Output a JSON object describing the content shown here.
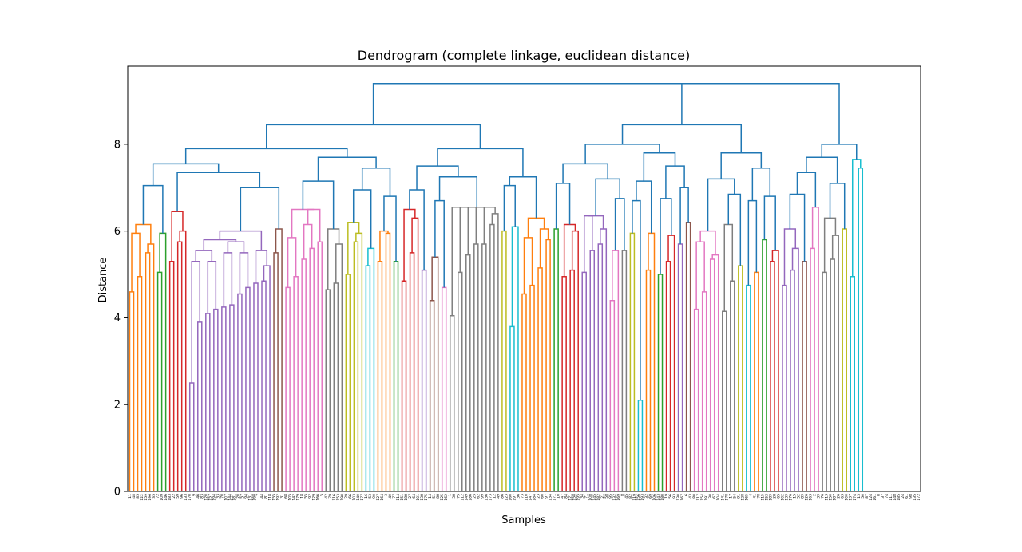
{
  "chart_data": {
    "type": "dendrogram",
    "title": "Dendrogram (complete linkage, euclidean distance)",
    "xlabel": "Samples",
    "ylabel": "Distance",
    "ylim": [
      0,
      9.8
    ],
    "yticks": [
      0,
      2,
      4,
      6,
      8
    ],
    "n_leaves": 198,
    "leaf_labels_note": "198 sample index labels printed vertically below the x-axis (too small to read individually)",
    "root_distance": 9.4,
    "clusters": [
      {
        "name": "C1",
        "color": "#ff7f0e",
        "size": 7,
        "top": 6.15,
        "h": [
          4.6,
          4.95,
          5.5,
          5.7,
          5.95
        ]
      },
      {
        "name": "C2",
        "color": "#2ca02c",
        "size": 3,
        "top": 5.95,
        "h": [
          5.05
        ]
      },
      {
        "name": "C3",
        "color": "#d62728",
        "size": 5,
        "top": 6.45,
        "h": [
          5.3,
          5.75,
          6.0
        ]
      },
      {
        "name": "C4",
        "color": "#9467bd",
        "size": 21,
        "top": 6.0,
        "h": [
          2.5,
          3.9,
          4.1,
          4.2,
          4.25,
          4.3,
          4.55,
          4.7,
          4.8,
          4.85,
          5.2,
          5.3,
          5.3,
          5.5,
          5.5,
          5.55,
          5.55,
          5.75,
          5.8
        ]
      },
      {
        "name": "C5",
        "color": "#8c564b",
        "size": 3,
        "top": 6.05,
        "h": [
          5.5
        ]
      },
      {
        "name": "C6",
        "color": "#e377c2",
        "size": 10,
        "top": 6.5,
        "h": [
          4.7,
          4.95,
          5.35,
          5.6,
          5.75,
          5.85,
          6.15
        ]
      },
      {
        "name": "C7",
        "color": "#7f7f7f",
        "size": 5,
        "top": 6.05,
        "h": [
          4.65,
          4.8,
          5.7
        ]
      },
      {
        "name": "C8",
        "color": "#bcbd22",
        "size": 5,
        "top": 6.4,
        "h": [
          5.0,
          5.75,
          5.95,
          6.2
        ]
      },
      {
        "name": "C9",
        "color": "#17becf",
        "size": 3,
        "top": 6.2,
        "h": [
          5.2,
          5.6
        ]
      },
      {
        "name": "C10",
        "color": "#ff7f0e",
        "size": 4,
        "top": 6.55,
        "h": [
          5.3,
          5.95,
          6.0
        ]
      },
      {
        "name": "C11",
        "color": "#2ca02c",
        "size": 2,
        "top": 5.3,
        "h": []
      },
      {
        "name": "C12",
        "color": "#d62728",
        "size": 5,
        "top": 6.5,
        "h": [
          4.85,
          5.5,
          6.3
        ]
      },
      {
        "name": "C13",
        "color": "#9467bd",
        "size": 2,
        "top": 6.3,
        "h": [
          5.1
        ]
      },
      {
        "name": "C14",
        "color": "#8c564b",
        "size": 3,
        "top": 5.75,
        "h": [
          4.4,
          5.4
        ]
      },
      {
        "name": "C15",
        "color": "#e377c2",
        "size": 2,
        "top": 6.35,
        "h": [
          4.7
        ]
      },
      {
        "name": "C16",
        "color": "#7f7f7f",
        "size": 13,
        "top": 6.55,
        "h": [
          4.05,
          5.05,
          5.45,
          5.7,
          5.7,
          6.15,
          6.4
        ]
      },
      {
        "name": "C17",
        "color": "#bcbd22",
        "size": 2,
        "top": 6.0,
        "h": []
      },
      {
        "name": "C18",
        "color": "#17becf",
        "size": 3,
        "top": 6.1,
        "h": [
          3.8
        ]
      },
      {
        "name": "C19",
        "color": "#ff7f0e",
        "size": 8,
        "top": 6.3,
        "h": [
          4.55,
          4.75,
          5.15,
          5.8,
          5.85,
          6.05
        ]
      },
      {
        "name": "C20",
        "color": "#2ca02c",
        "size": 2,
        "top": 6.05,
        "h": []
      },
      {
        "name": "C21",
        "color": "#d62728",
        "size": 5,
        "top": 6.15,
        "h": [
          4.95,
          5.1,
          6.0
        ]
      },
      {
        "name": "C22",
        "color": "#9467bd",
        "size": 7,
        "top": 6.35,
        "h": [
          5.05,
          5.55,
          5.7,
          6.05
        ]
      },
      {
        "name": "C23",
        "color": "#e377c2",
        "size": 3,
        "top": 5.8,
        "h": [
          4.4,
          5.55
        ]
      },
      {
        "name": "C24",
        "color": "#7f7f7f",
        "size": 2,
        "top": 5.55,
        "h": []
      },
      {
        "name": "C25",
        "color": "#bcbd22",
        "size": 2,
        "top": 5.95,
        "h": []
      },
      {
        "name": "C26",
        "color": "#17becf",
        "size": 2,
        "top": 2.1,
        "h": []
      },
      {
        "name": "C27",
        "color": "#ff7f0e",
        "size": 3,
        "top": 6.45,
        "h": [
          5.1,
          5.95
        ]
      },
      {
        "name": "C28",
        "color": "#2ca02c",
        "size": 2,
        "top": 5.9,
        "h": [
          5.0
        ]
      },
      {
        "name": "C29",
        "color": "#d62728",
        "size": 3,
        "top": 6.3,
        "h": [
          5.3,
          5.9
        ]
      },
      {
        "name": "C30",
        "color": "#9467bd",
        "size": 2,
        "top": 5.7,
        "h": []
      },
      {
        "name": "C31",
        "color": "#8c564b",
        "size": 2,
        "top": 6.2,
        "h": []
      },
      {
        "name": "C32",
        "color": "#e377c2",
        "size": 7,
        "top": 6.2,
        "h": [
          4.2,
          4.6,
          5.35,
          5.45,
          5.75,
          6.0
        ]
      },
      {
        "name": "C33",
        "color": "#7f7f7f",
        "size": 4,
        "top": 6.45,
        "h": [
          4.15,
          4.85,
          6.15
        ]
      },
      {
        "name": "C34",
        "color": "#bcbd22",
        "size": 2,
        "top": 6.4,
        "h": [
          5.2
        ]
      },
      {
        "name": "C35",
        "color": "#17becf",
        "size": 2,
        "top": 4.75,
        "h": []
      },
      {
        "name": "C36",
        "color": "#ff7f0e",
        "size": 2,
        "top": 5.05,
        "h": []
      },
      {
        "name": "C37",
        "color": "#2ca02c",
        "size": 2,
        "top": 5.8,
        "h": []
      },
      {
        "name": "C38",
        "color": "#d62728",
        "size": 3,
        "top": 6.0,
        "h": [
          5.3,
          5.55
        ]
      },
      {
        "name": "C39",
        "color": "#9467bd",
        "size": 5,
        "top": 6.4,
        "h": [
          4.75,
          5.1,
          5.6,
          6.05
        ]
      },
      {
        "name": "C40",
        "color": "#8c564b",
        "size": 2,
        "top": 5.3,
        "h": []
      },
      {
        "name": "C41",
        "color": "#e377c2",
        "size": 3,
        "top": 6.55,
        "h": [
          5.6
        ]
      },
      {
        "name": "C42",
        "color": "#7f7f7f",
        "size": 5,
        "top": 6.3,
        "h": [
          5.05,
          5.35,
          5.9
        ]
      },
      {
        "name": "C43",
        "color": "#bcbd22",
        "size": 2,
        "top": 6.05,
        "h": []
      },
      {
        "name": "C44",
        "color": "#17becf",
        "size": 4,
        "top": 8.0,
        "h": [
          4.95,
          7.45,
          7.65
        ]
      }
    ],
    "upper_merge_heights": [
      9.4,
      8.45,
      8.0,
      7.9,
      7.8,
      7.7,
      7.55,
      7.5,
      7.45,
      7.35,
      7.25,
      7.2,
      7.15,
      7.1,
      7.05,
      7.0,
      6.95,
      6.85,
      6.8,
      6.75,
      6.7
    ],
    "link_color_above_threshold": "#1f77b4"
  }
}
